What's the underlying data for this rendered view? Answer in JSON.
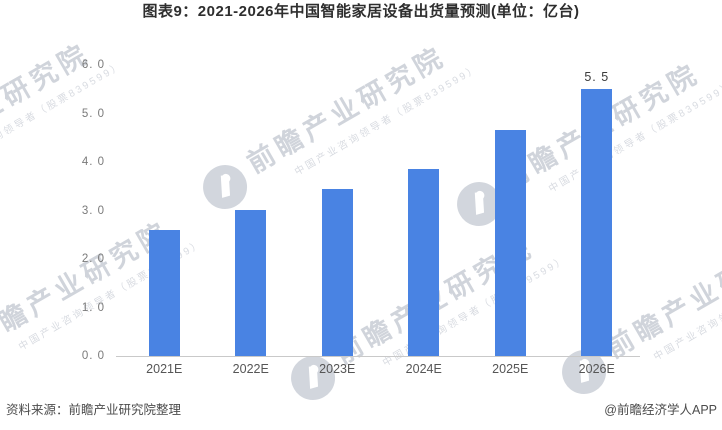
{
  "title": "图表9：2021-2026年中国智能家居设备出货量预测(单位：亿台)",
  "chart_data": {
    "type": "bar",
    "title": "图表9：2021-2026年中国智能家居设备出货量预测",
    "unit": "亿台",
    "categories": [
      "2021E",
      "2022E",
      "2023E",
      "2024E",
      "2025E",
      "2026E"
    ],
    "values": [
      2.6,
      3.0,
      3.45,
      3.85,
      4.65,
      5.5
    ],
    "value_labels": [
      "",
      "",
      "",
      "",
      "",
      "5. 5"
    ],
    "xlabel": "",
    "ylabel": "",
    "ylim": [
      0,
      6
    ],
    "ytick_labels_top_to_bottom": [
      "6. 0",
      "5. 0",
      "4. 0",
      "3. 0",
      "2. 0",
      "1. 0",
      "0. 0"
    ],
    "grid": false,
    "legend": "none",
    "bar_color": "#4983e3",
    "axis_color": "#c9c9c9"
  },
  "watermark": {
    "text_large": "前瞻产业研究院",
    "text_small": "中国产业咨询领导者（股票839599）"
  },
  "footer": {
    "source": "资料来源：前瞻产业研究院整理",
    "credit": "@前瞻经济学人APP"
  }
}
